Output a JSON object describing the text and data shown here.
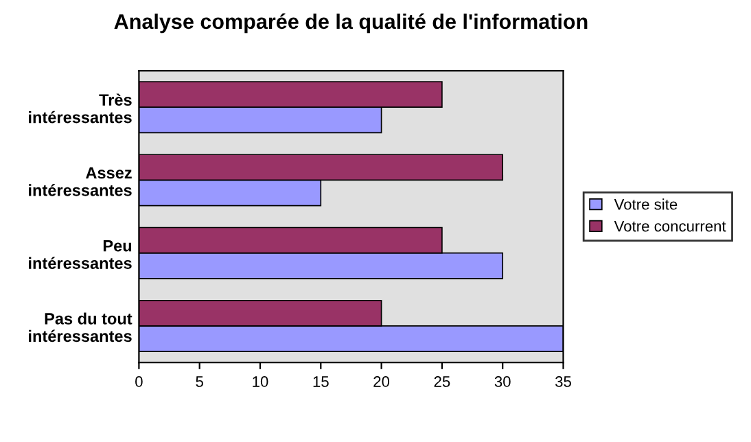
{
  "chart_data": {
    "type": "bar",
    "orientation": "horizontal",
    "title": "Analyse comparée de la qualité de l'information",
    "categories": [
      "Très\nintéressantes",
      "Assez\nintéressantes",
      "Peu\nintéressantes",
      "Pas du tout\nintéressantes"
    ],
    "series": [
      {
        "name": "Votre site",
        "color": "#9999ff",
        "values": [
          20,
          15,
          30,
          35
        ]
      },
      {
        "name": "Votre concurrent",
        "color": "#993366",
        "values": [
          25,
          30,
          25,
          20
        ]
      }
    ],
    "xlim": [
      0,
      35
    ],
    "xticks": [
      0,
      5,
      10,
      15,
      20,
      25,
      30,
      35
    ],
    "grid": false,
    "legend": "right"
  }
}
